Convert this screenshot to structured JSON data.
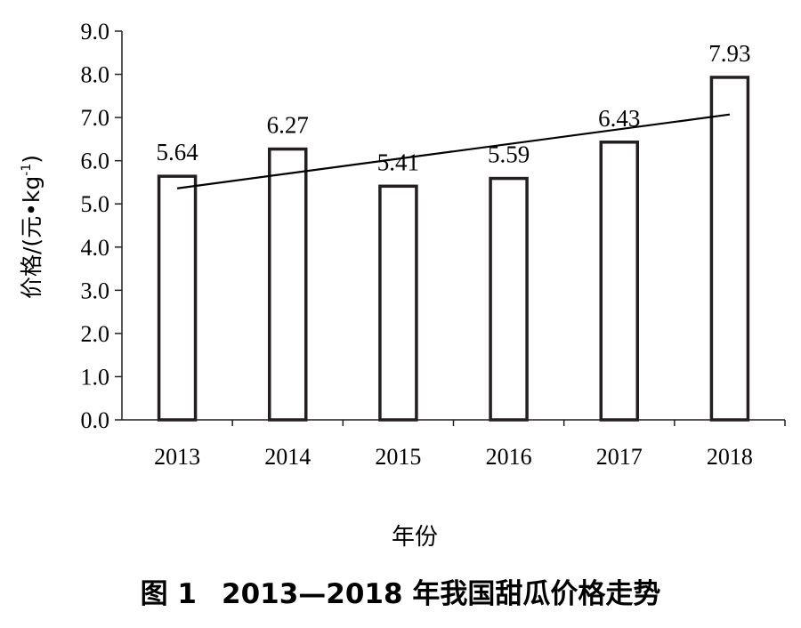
{
  "chart_data": {
    "type": "bar",
    "categories": [
      "2013",
      "2014",
      "2015",
      "2016",
      "2017",
      "2018"
    ],
    "values": [
      5.64,
      6.27,
      5.41,
      5.59,
      6.43,
      7.93
    ],
    "data_labels": [
      "5.64",
      "6.27",
      "5.41",
      "5.59",
      "6.43",
      "7.93"
    ],
    "xlabel": "年份",
    "ylabel": "价格/(元•kg",
    "ylabel_superscript": "-1",
    "ylabel_suffix": ")",
    "ylim": [
      0,
      9
    ],
    "yticks": [
      "0.0",
      "1.0",
      "2.0",
      "3.0",
      "4.0",
      "5.0",
      "6.0",
      "7.0",
      "8.0",
      "9.0"
    ],
    "trendline": {
      "type": "linear",
      "start": 5.36,
      "end": 7.07
    },
    "grid": false,
    "colors": {
      "bar_fill": "#ffffff",
      "bar_stroke": "#231f20",
      "axis": "#231f20",
      "trendline": "#000000"
    }
  },
  "caption": {
    "figure_label": "图 1",
    "title": "2013—2018 年我国甜瓜价格走势"
  }
}
